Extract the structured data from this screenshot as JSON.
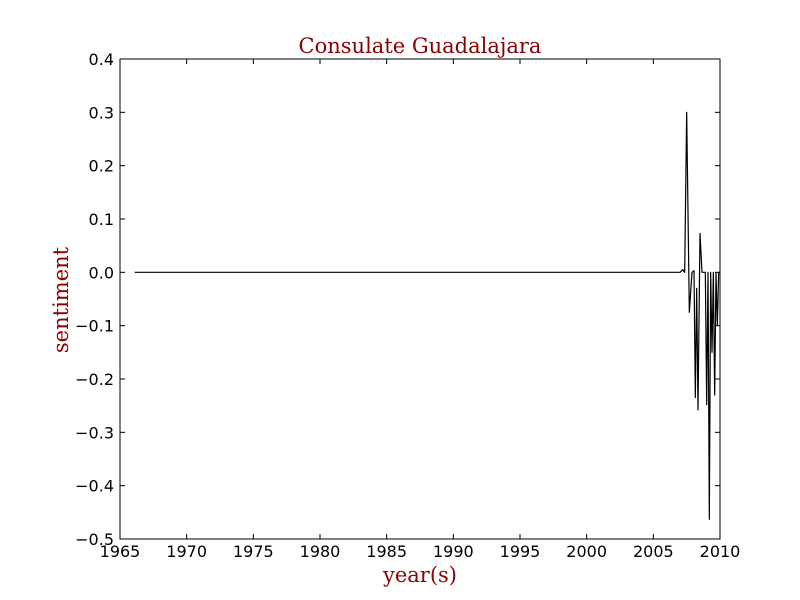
{
  "chart_data": {
    "type": "line",
    "title": "Consulate Guadalajara",
    "xlabel": "year(s)",
    "ylabel": "sentiment",
    "xlim": [
      1965,
      2010
    ],
    "ylim": [
      -0.5,
      0.4
    ],
    "x_ticks": [
      1965,
      1970,
      1975,
      1980,
      1985,
      1990,
      1995,
      2000,
      2005,
      2010
    ],
    "x_tick_labels": [
      "1965",
      "1970",
      "1975",
      "1980",
      "1985",
      "1990",
      "1995",
      "2000",
      "2005",
      "2010"
    ],
    "y_ticks": [
      0.4,
      0.3,
      0.2,
      0.1,
      0.0,
      -0.1,
      -0.2,
      -0.3,
      -0.4,
      -0.5
    ],
    "y_tick_labels": [
      "0.4",
      "0.3",
      "0.2",
      "0.1",
      "0.0",
      "−0.1",
      "−0.2",
      "−0.3",
      "−0.4",
      "−0.5"
    ],
    "grid": false,
    "series": [
      {
        "name": "sentiment",
        "color": "#000000",
        "x": [
          1966.1,
          2007.0,
          2007.2,
          2007.35,
          2007.5,
          2007.7,
          2007.9,
          2008.05,
          2008.15,
          2008.25,
          2008.35,
          2008.5,
          2008.65,
          2008.8,
          2008.9,
          2009.0,
          2009.1,
          2009.2,
          2009.3,
          2009.4,
          2009.5,
          2009.6,
          2009.7,
          2009.8,
          2009.9,
          2010.0
        ],
        "y": [
          0.0,
          0.0,
          0.005,
          0.0,
          0.3,
          -0.075,
          0.0,
          0.003,
          -0.235,
          -0.03,
          -0.258,
          0.073,
          0.0,
          0.0,
          0.0,
          -0.248,
          0.0,
          -0.463,
          0.0,
          -0.15,
          0.0,
          -0.23,
          0.0,
          -0.1,
          0.0,
          0.0
        ]
      }
    ]
  }
}
